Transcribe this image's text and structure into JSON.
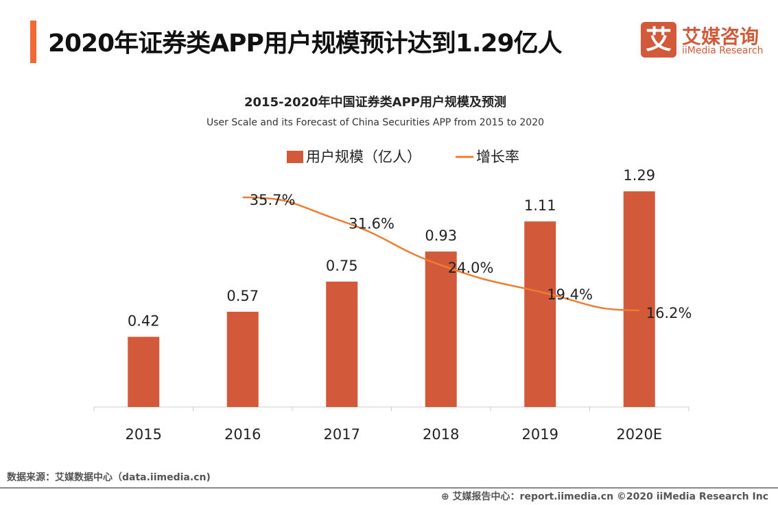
{
  "header": {
    "title": "2020年证券类APP用户规模预计达到1.29亿人"
  },
  "logo": {
    "cn": "艾媒咨询",
    "en": "iiMedia Research",
    "mark": "艾"
  },
  "chart_data": {
    "type": "bar",
    "title": "2015-2020年中国证券类APP用户规模及预测",
    "subtitle": "User Scale and its Forecast of China Securities APP from 2015 to 2020",
    "categories": [
      "2015",
      "2016",
      "2017",
      "2018",
      "2019",
      "2020E"
    ],
    "legend_position": "top",
    "grid": false,
    "series": [
      {
        "name": "用户规模（亿人）",
        "type": "bar",
        "color": "#d25a3a",
        "values": [
          0.42,
          0.57,
          0.75,
          0.93,
          1.11,
          1.29
        ],
        "labels": [
          "0.42",
          "0.57",
          "0.75",
          "0.93",
          "1.11",
          "1.29"
        ]
      },
      {
        "name": "增长率",
        "type": "line",
        "color": "#ed7d31",
        "values": [
          null,
          35.7,
          31.6,
          24.0,
          19.4,
          16.2
        ],
        "labels": [
          "",
          "35.7%",
          "31.6%",
          "24.0%",
          "19.4%",
          "16.2%"
        ]
      }
    ]
  },
  "footer": {
    "source": "数据来源：艾媒数据中心（data.iimedia.cn)",
    "report": "艾媒报告中心：report.iimedia.cn  ©2020  iiMedia Research  Inc"
  }
}
